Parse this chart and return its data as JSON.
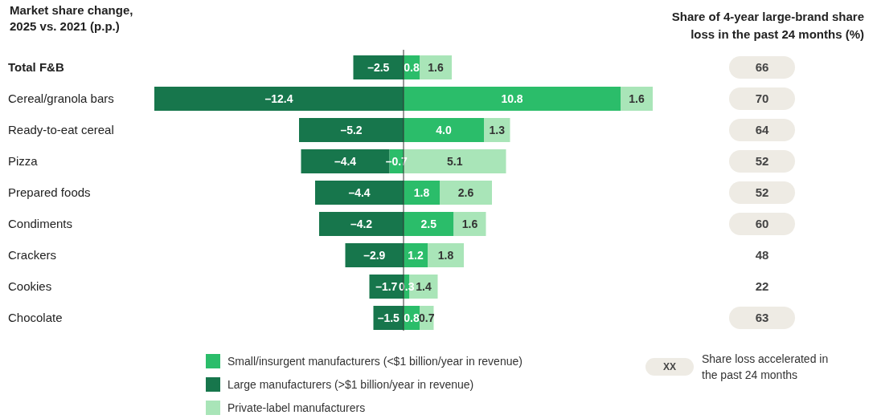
{
  "chart_data": [
    {
      "type": "bar",
      "orientation": "horizontal",
      "stacked": true,
      "title": "Market share change, 2025 vs. 2021 (p.p.)",
      "categories": [
        "Total F&B",
        "Cereal/granola bars",
        "Ready-to-eat cereal",
        "Pizza",
        "Prepared foods",
        "Condiments",
        "Crackers",
        "Cookies",
        "Chocolate"
      ],
      "series": [
        {
          "name": "Small/insurgent manufacturers (<$1 billion/year in revenue)",
          "color": "#2bbd6a",
          "values": [
            0.8,
            10.8,
            4.0,
            -0.7,
            1.8,
            2.5,
            1.2,
            0.3,
            0.8
          ],
          "value_labels": [
            "0.8",
            "10.8",
            "4.0",
            "–0.7",
            "1.8",
            "2.5",
            "1.2",
            "0.3",
            "0.8"
          ]
        },
        {
          "name": "Large manufacturers (>$1 billion/year in revenue)",
          "color": "#17764c",
          "values": [
            -2.5,
            -12.4,
            -5.2,
            -4.4,
            -4.4,
            -4.2,
            -2.9,
            -1.7,
            -1.5
          ],
          "value_labels": [
            "–2.5",
            "–12.4",
            "–5.2",
            "–4.4",
            "–4.4",
            "–4.2",
            "–2.9",
            "–1.7",
            "–1.5"
          ]
        },
        {
          "name": "Private-label manufacturers",
          "color": "#a9e5b8",
          "values": [
            1.6,
            1.6,
            1.3,
            5.1,
            2.6,
            1.6,
            1.8,
            1.4,
            0.7
          ],
          "value_labels": [
            "1.6",
            "1.6",
            "1.3",
            "5.1",
            "2.6",
            "1.6",
            "1.8",
            "1.4",
            "0.7"
          ]
        }
      ],
      "legend": "bottom"
    },
    {
      "type": "other",
      "title": "Share of 4-year large-brand share loss in the past 24 months (%)",
      "values": [
        66,
        70,
        64,
        52,
        52,
        60,
        48,
        22,
        63
      ],
      "data_labels": true,
      "colors": [
        "#eeebe4",
        "#eeebe4",
        "#eeebe4",
        "#eeebe4",
        "#eeebe4",
        "#eeebe4",
        null,
        null,
        "#eeebe4"
      ],
      "annotations": [
        "XX",
        "Share loss accelerated in the past 24 months"
      ]
    }
  ]
}
